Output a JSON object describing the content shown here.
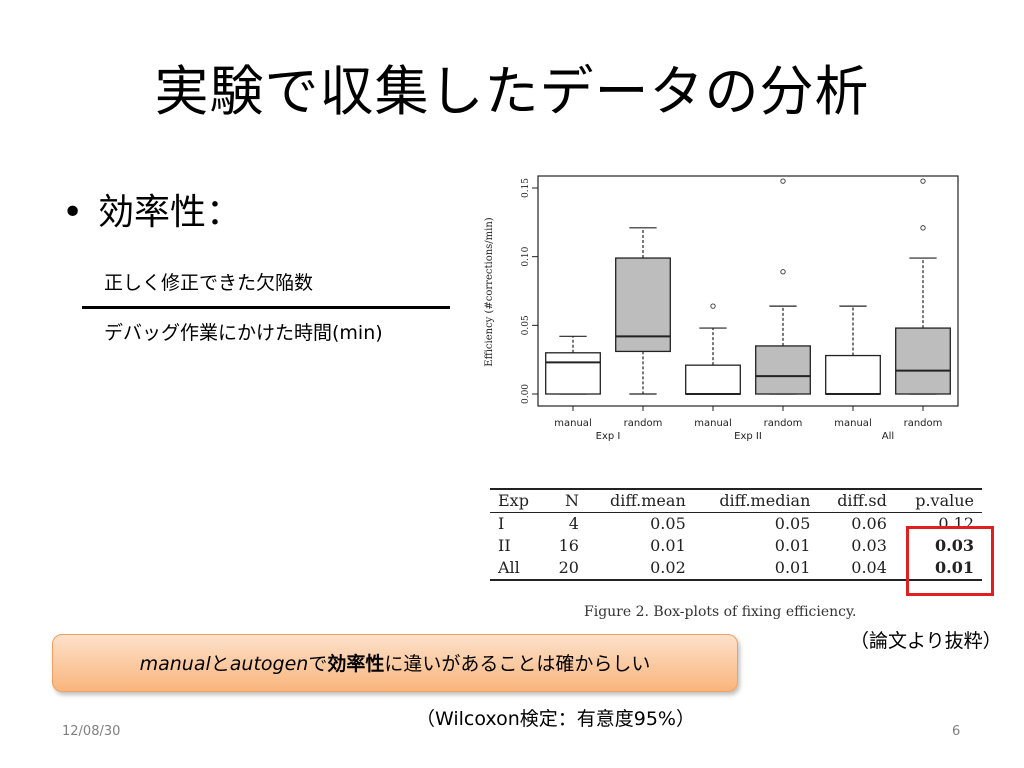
{
  "slide": {
    "title": "実験で収集したデータの分析",
    "bullet_marker": "•",
    "bullet": "効率性：",
    "fraction_numerator": "正しく修正できた欠陥数",
    "fraction_denominator": "デバッグ作業にかけた時間(min)",
    "source_note": "（論文より抜粋）",
    "callout": {
      "part1": "manual",
      "part2": "と",
      "part3": "autogen",
      "part4": "で",
      "part5": "効率性",
      "part6": "に違いがあることは確からしい"
    },
    "test_note": "（Wilcoxon検定：有意度95%）",
    "date": "12/08/30",
    "page_number": "6"
  },
  "chart_data": {
    "type": "boxplot",
    "ylabel": "Efficiency (#corrections/min)",
    "ylim": [
      0,
      0.15
    ],
    "yticks": [
      "0.00",
      "0.05",
      "0.10",
      "0.15"
    ],
    "groups": [
      {
        "label": "Exp I",
        "categories": [
          "manual",
          "random"
        ]
      },
      {
        "label": "Exp II",
        "categories": [
          "manual",
          "random"
        ]
      },
      {
        "label": "All",
        "categories": [
          "manual",
          "random"
        ]
      }
    ],
    "boxes": [
      {
        "name": "manual",
        "group": "Exp I",
        "fill": "#ffffff",
        "min": 0,
        "q1": 0,
        "median": 0.023,
        "q3": 0.03,
        "max": 0.042,
        "outliers": []
      },
      {
        "name": "random",
        "group": "Exp I",
        "fill": "#bdbdbd",
        "min": 0,
        "q1": 0.031,
        "median": 0.042,
        "q3": 0.099,
        "max": 0.121,
        "outliers": []
      },
      {
        "name": "manual",
        "group": "Exp II",
        "fill": "#ffffff",
        "min": 0,
        "q1": 0,
        "median": 0,
        "q3": 0.021,
        "max": 0.048,
        "outliers": [
          0.064
        ]
      },
      {
        "name": "random",
        "group": "Exp II",
        "fill": "#bdbdbd",
        "min": 0,
        "q1": 0,
        "median": 0.013,
        "q3": 0.035,
        "max": 0.064,
        "outliers": [
          0.089,
          0.155
        ]
      },
      {
        "name": "manual",
        "group": "All",
        "fill": "#ffffff",
        "min": 0,
        "q1": 0,
        "median": 0,
        "q3": 0.028,
        "max": 0.064,
        "outliers": []
      },
      {
        "name": "random",
        "group": "All",
        "fill": "#bdbdbd",
        "min": 0,
        "q1": 0,
        "median": 0.017,
        "q3": 0.048,
        "max": 0.099,
        "outliers": [
          0.121,
          0.155
        ]
      }
    ],
    "table": {
      "columns": [
        "Exp",
        "N",
        "diff.mean",
        "diff.median",
        "diff.sd",
        "p.value"
      ],
      "rows": [
        [
          "I",
          "4",
          "0.05",
          "0.05",
          "0.06",
          "0.12"
        ],
        [
          "II",
          "16",
          "0.01",
          "0.01",
          "0.03",
          "0.03"
        ],
        [
          "All",
          "20",
          "0.02",
          "0.01",
          "0.04",
          "0.01"
        ]
      ],
      "highlight": "p.value"
    },
    "caption": "Figure 2.   Box-plots of fixing efficiency.",
    "highlight_color": "#e02020"
  }
}
